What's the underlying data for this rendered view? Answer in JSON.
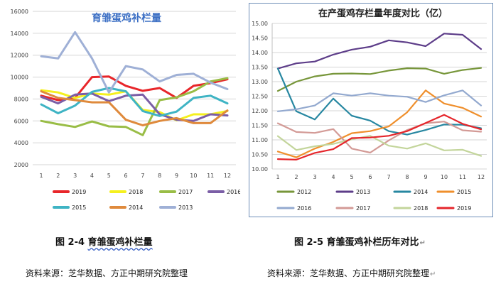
{
  "chart_data": [
    {
      "type": "line",
      "title": "育雏蛋鸡补栏量",
      "x": [
        1,
        2,
        3,
        4,
        5,
        6,
        7,
        8,
        9,
        10,
        11,
        12
      ],
      "ylim": [
        2000,
        16000
      ],
      "yticks": [
        2000,
        4000,
        6000,
        8000,
        10000,
        12000,
        14000,
        16000
      ],
      "grid": true,
      "legend_position": "bottom",
      "series": [
        {
          "name": "2019",
          "color": "#e8262a",
          "values": [
            8300,
            7900,
            8100,
            10000,
            10050,
            9200,
            8750,
            9000,
            8100,
            9200,
            9450,
            9800
          ]
        },
        {
          "name": "2018",
          "color": "#f5f01e",
          "values": [
            8800,
            8600,
            8100,
            8500,
            8400,
            8700,
            7000,
            6800,
            6050,
            6600,
            6600,
            6900
          ]
        },
        {
          "name": "2017",
          "color": "#99bd46",
          "values": [
            6000,
            5700,
            5450,
            5950,
            5500,
            5450,
            4700,
            7900,
            8150,
            8700,
            9600,
            9900
          ]
        },
        {
          "name": "2016",
          "color": "#7b5ea6",
          "values": [
            8200,
            7600,
            8400,
            8500,
            7800,
            8300,
            8400,
            6600,
            6100,
            6000,
            6600,
            6500
          ]
        },
        {
          "name": "2015",
          "color": "#3fb4c4",
          "values": [
            7500,
            6700,
            7400,
            8650,
            9000,
            8700,
            6900,
            6450,
            6850,
            8100,
            8300,
            7600
          ]
        },
        {
          "name": "2014",
          "color": "#df8a3c",
          "values": [
            8700,
            8100,
            7900,
            7700,
            7700,
            6100,
            5600,
            6000,
            6250,
            5800,
            5800,
            6950
          ]
        },
        {
          "name": "2013",
          "color": "#9fb0d6",
          "values": [
            11900,
            11700,
            14100,
            11700,
            8600,
            11000,
            10700,
            9600,
            10200,
            10300,
            9500,
            8900
          ]
        }
      ]
    },
    {
      "type": "line",
      "title": "在产蛋鸡存栏量年度对比（亿）",
      "x": [
        1,
        2,
        3,
        4,
        5,
        6,
        7,
        8,
        9,
        10,
        11,
        12
      ],
      "ylim": [
        10.0,
        15.0
      ],
      "yticks": [
        "10.00",
        "10.50",
        "11.00",
        "11.50",
        "12.00",
        "12.50",
        "13.00",
        "13.50",
        "14.00",
        "14.50",
        "15.00"
      ],
      "grid": true,
      "legend_position": "bottom",
      "series": [
        {
          "name": "2012",
          "color": "#77963a",
          "values": [
            12.68,
            13.0,
            13.18,
            13.27,
            13.28,
            13.26,
            13.38,
            13.46,
            13.45,
            13.27,
            13.4,
            13.47
          ]
        },
        {
          "name": "2013",
          "color": "#5d3d89",
          "values": [
            13.45,
            13.63,
            13.69,
            13.93,
            14.1,
            14.2,
            14.42,
            14.35,
            14.22,
            14.65,
            14.61,
            14.12
          ]
        },
        {
          "name": "2014",
          "color": "#2787a1",
          "values": [
            13.45,
            11.98,
            11.7,
            12.42,
            11.83,
            11.66,
            11.3,
            11.18,
            11.34,
            11.53,
            11.52,
            11.4
          ]
        },
        {
          "name": "2015",
          "color": "#ef8f2c",
          "values": [
            10.6,
            10.4,
            10.7,
            10.93,
            11.23,
            11.3,
            11.46,
            11.95,
            12.7,
            12.25,
            12.1,
            11.8
          ]
        },
        {
          "name": "2016",
          "color": "#93a9cf",
          "values": [
            11.98,
            12.05,
            12.18,
            12.6,
            12.52,
            12.6,
            12.52,
            12.48,
            12.3,
            12.53,
            12.7,
            12.18
          ]
        },
        {
          "name": "2017",
          "color": "#d39a96",
          "values": [
            11.57,
            11.27,
            11.24,
            11.37,
            10.7,
            10.56,
            10.98,
            11.34,
            11.57,
            11.63,
            11.33,
            11.28
          ]
        },
        {
          "name": "2018",
          "color": "#c3d59b",
          "values": [
            11.13,
            10.65,
            10.78,
            10.86,
            11.02,
            11.14,
            10.8,
            10.7,
            10.88,
            10.64,
            10.66,
            10.45
          ]
        },
        {
          "name": "2019",
          "color": "#e5252b",
          "values": [
            10.34,
            10.32,
            10.55,
            10.68,
            11.06,
            11.08,
            11.14,
            11.3,
            11.58,
            11.86,
            11.55,
            11.36
          ]
        }
      ]
    }
  ],
  "captions": {
    "left": {
      "prefix": "图 2-4  ",
      "underlined": "育雏蛋鸡补栏量"
    },
    "right": {
      "text": "图 2-5  育雏蛋鸡补栏历年对比",
      "mark": "↵"
    }
  },
  "sources": {
    "left": "资料来源：芝华数据、方正中期研究院整理",
    "right": "资料来源：芝华数据、方正中期研究院整理",
    "right_mark": "↵"
  }
}
